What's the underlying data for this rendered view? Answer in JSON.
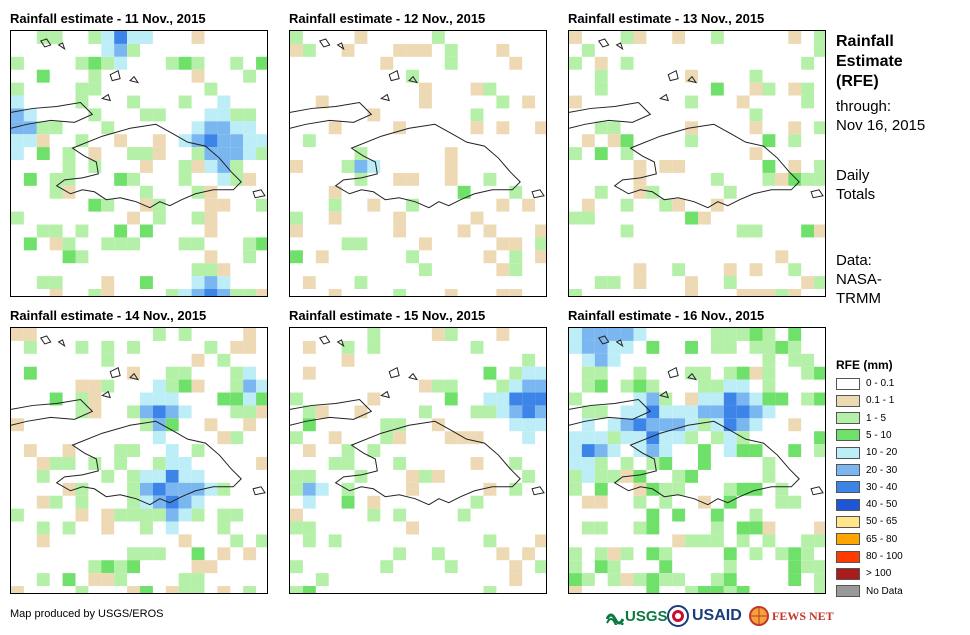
{
  "panels": [
    {
      "title": "Rainfall estimate - 11 Nov., 2015"
    },
    {
      "title": "Rainfall estimate - 12 Nov., 2015"
    },
    {
      "title": "Rainfall estimate - 13 Nov., 2015"
    },
    {
      "title": "Rainfall estimate - 14 Nov., 2015"
    },
    {
      "title": "Rainfall estimate - 15 Nov., 2015"
    },
    {
      "title": "Rainfall estimate - 16 Nov., 2015"
    }
  ],
  "side": {
    "title_lines": [
      "Rainfall",
      "Estimate",
      "(RFE)"
    ],
    "through": "through:",
    "date": "Nov 16, 2015",
    "daily": [
      "Daily",
      "Totals"
    ],
    "data": [
      "Data:",
      "NASA-",
      "TRMM"
    ]
  },
  "legend": {
    "title": "RFE (mm)",
    "items": [
      {
        "label": "0 - 0.1",
        "color": "#ffffff"
      },
      {
        "label": "0.1 - 1",
        "color": "#eed9b5"
      },
      {
        "label": "1 - 5",
        "color": "#b5f0a8"
      },
      {
        "label": "5 - 10",
        "color": "#6fe06a"
      },
      {
        "label": "10 - 20",
        "color": "#bdeef7"
      },
      {
        "label": "20 - 30",
        "color": "#7ab6f0"
      },
      {
        "label": "30 - 40",
        "color": "#3d84e8"
      },
      {
        "label": "40 - 50",
        "color": "#1f56d6"
      },
      {
        "label": "50 - 65",
        "color": "#ffe68a"
      },
      {
        "label": "65 - 80",
        "color": "#ffa500"
      },
      {
        "label": "80 - 100",
        "color": "#ff3b00"
      },
      {
        "label": "> 100",
        "color": "#a81c1c"
      },
      {
        "label": "No Data",
        "color": "#999999"
      }
    ]
  },
  "credit": "Map produced by USGS/EROS",
  "logos": {
    "usgs": "USGS",
    "usaid": "USAID",
    "fews": "FEWS NET"
  }
}
